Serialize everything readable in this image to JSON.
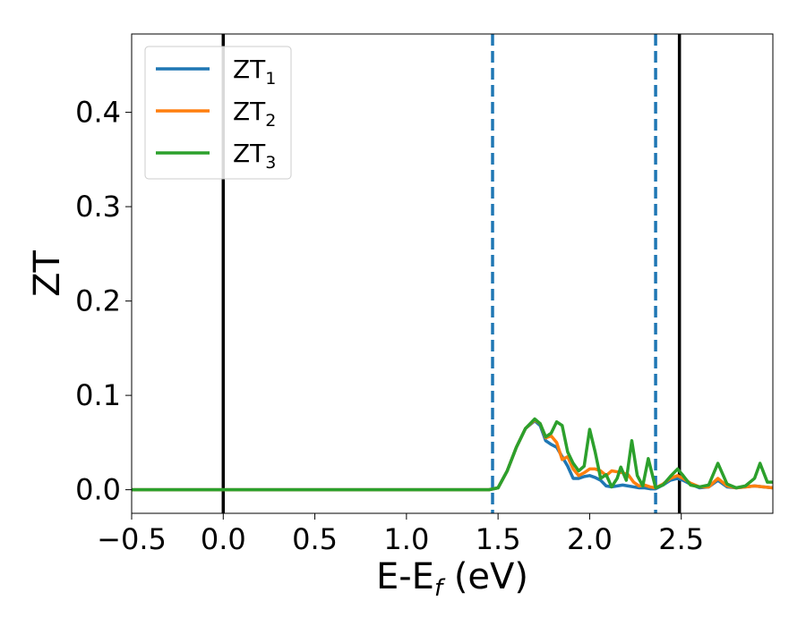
{
  "chart_data": {
    "type": "line",
    "xlabel": "E-E",
    "xlabel_sub": "f",
    "xlabel_unit": " (eV)",
    "ylabel": "ZT",
    "xlim": [
      -0.5,
      3.0
    ],
    "ylim": [
      -0.025,
      0.483
    ],
    "xticks": [
      -0.5,
      0.0,
      0.5,
      1.0,
      1.5,
      2.0,
      2.5
    ],
    "xtick_labels": [
      "−0.5",
      "0.0",
      "0.5",
      "1.0",
      "1.5",
      "2.0",
      "2.5"
    ],
    "yticks": [
      0.0,
      0.1,
      0.2,
      0.3,
      0.4
    ],
    "ytick_labels": [
      "0.0",
      "0.1",
      "0.2",
      "0.3",
      "0.4"
    ],
    "grid": false,
    "legend_position": "top-left",
    "vlines": [
      {
        "x": 0.0,
        "style": "solid",
        "color": "#000000"
      },
      {
        "x": 2.49,
        "style": "solid",
        "color": "#000000"
      },
      {
        "x": 1.47,
        "style": "dashed",
        "color": "#1f77b4"
      },
      {
        "x": 2.36,
        "style": "dashed",
        "color": "#1f77b4"
      }
    ],
    "series": [
      {
        "name": "ZT",
        "name_sub": "1",
        "color": "#1f77b4",
        "x": [
          -0.5,
          1.35,
          1.45,
          1.5,
          1.55,
          1.6,
          1.65,
          1.7,
          1.73,
          1.76,
          1.79,
          1.82,
          1.85,
          1.88,
          1.91,
          1.94,
          1.97,
          2.0,
          2.03,
          2.06,
          2.09,
          2.12,
          2.15,
          2.18,
          2.21,
          2.24,
          2.27,
          2.3,
          2.33,
          2.36,
          2.4,
          2.44,
          2.48,
          2.51,
          2.55,
          2.6,
          2.65,
          2.7,
          2.75,
          2.8,
          2.85,
          2.9,
          2.95,
          3.0
        ],
        "y": [
          0.0,
          0.0,
          0.0,
          0.002,
          0.02,
          0.045,
          0.065,
          0.073,
          0.068,
          0.052,
          0.048,
          0.045,
          0.035,
          0.025,
          0.012,
          0.012,
          0.014,
          0.015,
          0.013,
          0.01,
          0.004,
          0.003,
          0.004,
          0.005,
          0.004,
          0.003,
          0.002,
          0.002,
          0.001,
          0.001,
          0.005,
          0.01,
          0.012,
          0.01,
          0.006,
          0.002,
          0.003,
          0.01,
          0.003,
          0.002,
          0.003,
          0.004,
          0.003,
          0.002
        ]
      },
      {
        "name": "ZT",
        "name_sub": "2",
        "color": "#ff7f0e",
        "x": [
          -0.5,
          1.35,
          1.45,
          1.5,
          1.55,
          1.6,
          1.65,
          1.7,
          1.73,
          1.76,
          1.79,
          1.82,
          1.85,
          1.88,
          1.91,
          1.94,
          1.97,
          2.0,
          2.03,
          2.06,
          2.09,
          2.12,
          2.15,
          2.18,
          2.21,
          2.24,
          2.27,
          2.3,
          2.33,
          2.36,
          2.4,
          2.44,
          2.48,
          2.51,
          2.55,
          2.6,
          2.65,
          2.7,
          2.75,
          2.8,
          2.85,
          2.9,
          2.95,
          3.0
        ],
        "y": [
          0.0,
          0.0,
          0.0,
          0.002,
          0.02,
          0.045,
          0.065,
          0.074,
          0.07,
          0.055,
          0.057,
          0.05,
          0.032,
          0.035,
          0.022,
          0.015,
          0.018,
          0.022,
          0.022,
          0.02,
          0.015,
          0.02,
          0.019,
          0.018,
          0.016,
          0.008,
          0.004,
          0.005,
          0.003,
          0.002,
          0.006,
          0.012,
          0.015,
          0.012,
          0.007,
          0.003,
          0.003,
          0.012,
          0.004,
          0.002,
          0.003,
          0.004,
          0.003,
          0.002
        ]
      },
      {
        "name": "ZT",
        "name_sub": "3",
        "color": "#2ca02c",
        "x": [
          -0.5,
          1.35,
          1.45,
          1.5,
          1.55,
          1.6,
          1.65,
          1.7,
          1.73,
          1.76,
          1.79,
          1.82,
          1.85,
          1.88,
          1.91,
          1.94,
          1.97,
          2.0,
          2.03,
          2.06,
          2.09,
          2.12,
          2.15,
          2.17,
          2.2,
          2.23,
          2.26,
          2.29,
          2.32,
          2.36,
          2.4,
          2.44,
          2.48,
          2.51,
          2.55,
          2.6,
          2.65,
          2.7,
          2.75,
          2.8,
          2.85,
          2.9,
          2.93,
          2.97,
          3.0
        ],
        "y": [
          0.0,
          0.0,
          0.0,
          0.002,
          0.02,
          0.045,
          0.065,
          0.075,
          0.07,
          0.056,
          0.06,
          0.072,
          0.068,
          0.04,
          0.028,
          0.02,
          0.025,
          0.064,
          0.04,
          0.012,
          0.016,
          0.003,
          0.012,
          0.024,
          0.01,
          0.052,
          0.015,
          0.004,
          0.033,
          0.002,
          0.005,
          0.014,
          0.022,
          0.015,
          0.005,
          0.003,
          0.005,
          0.028,
          0.006,
          0.002,
          0.004,
          0.012,
          0.028,
          0.008,
          0.008
        ]
      }
    ]
  }
}
